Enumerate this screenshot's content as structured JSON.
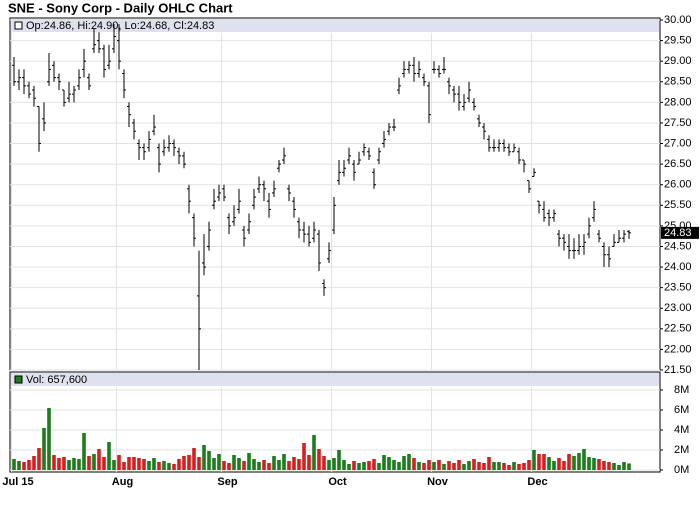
{
  "chart_data": {
    "type": "ohlc",
    "title": "SNE - Sony Corp - Daily OHLC Chart",
    "legend_text": "Op:24.86, Hi:24.90, Lo:24.68, Cl:24.83",
    "color": "#000000",
    "grid": true,
    "categories": [
      "Jul 15",
      null,
      null,
      null,
      null,
      null,
      null,
      null,
      null,
      null,
      null,
      null,
      null,
      null,
      null,
      null,
      null,
      null,
      null,
      null,
      null,
      "Aug",
      null,
      null,
      null,
      null,
      null,
      null,
      null,
      null,
      null,
      null,
      null,
      null,
      null,
      null,
      null,
      null,
      null,
      null,
      null,
      null,
      "Sep",
      null,
      null,
      null,
      null,
      null,
      null,
      null,
      null,
      null,
      null,
      null,
      null,
      null,
      null,
      null,
      null,
      null,
      null,
      null,
      null,
      null,
      "Oct",
      null,
      null,
      null,
      null,
      null,
      null,
      null,
      null,
      null,
      null,
      null,
      null,
      null,
      null,
      null,
      null,
      null,
      null,
      null,
      "Nov",
      null,
      null,
      null,
      null,
      null,
      null,
      null,
      null,
      null,
      null,
      null,
      null,
      null,
      null,
      null,
      null,
      null,
      null,
      null,
      "Dec",
      null,
      null,
      null,
      null,
      null,
      null,
      null,
      null,
      null,
      null,
      null,
      null,
      null,
      null,
      null,
      null,
      null,
      null,
      null
    ],
    "ohlc": [
      [
        28.9,
        29.1,
        28.4,
        28.5
      ],
      [
        28.5,
        28.8,
        28.3,
        28.6
      ],
      [
        28.6,
        28.8,
        28.2,
        28.4
      ],
      [
        28.4,
        28.5,
        28.1,
        28.2
      ],
      [
        28.3,
        28.4,
        27.9,
        28.1
      ],
      [
        27.9,
        27.9,
        26.8,
        27.0
      ],
      [
        27.6,
        28.0,
        27.3,
        27.5
      ],
      [
        28.5,
        29.2,
        28.4,
        28.8
      ],
      [
        28.9,
        29.0,
        28.5,
        28.6
      ],
      [
        28.6,
        28.7,
        28.3,
        28.5
      ],
      [
        28.3,
        28.3,
        27.9,
        28.0
      ],
      [
        28.1,
        28.5,
        28.0,
        28.2
      ],
      [
        28.2,
        28.4,
        28.0,
        28.3
      ],
      [
        28.4,
        28.8,
        28.3,
        28.6
      ],
      [
        28.8,
        29.3,
        28.6,
        29.0
      ],
      [
        28.6,
        28.7,
        28.3,
        28.4
      ],
      [
        29.3,
        29.8,
        29.2,
        29.4
      ],
      [
        29.5,
        29.7,
        29.2,
        29.3
      ],
      [
        29.3,
        29.4,
        28.6,
        28.8
      ],
      [
        28.9,
        29.4,
        28.8,
        29.0
      ],
      [
        29.3,
        29.9,
        29.2,
        29.6
      ],
      [
        29.5,
        29.9,
        28.8,
        29.0
      ],
      [
        28.7,
        28.8,
        28.1,
        28.3
      ],
      [
        27.9,
        28.0,
        27.4,
        27.7
      ],
      [
        27.5,
        27.6,
        27.1,
        27.3
      ],
      [
        27.0,
        27.1,
        26.6,
        26.9
      ],
      [
        26.9,
        27.0,
        26.6,
        26.8
      ],
      [
        26.9,
        27.3,
        26.8,
        27.1
      ],
      [
        27.3,
        27.7,
        27.2,
        27.4
      ],
      [
        26.9,
        27.0,
        26.3,
        26.5
      ],
      [
        26.8,
        27.1,
        26.7,
        26.9
      ],
      [
        26.9,
        27.2,
        26.8,
        27.0
      ],
      [
        27.0,
        27.1,
        26.7,
        26.9
      ],
      [
        26.8,
        26.9,
        26.5,
        26.7
      ],
      [
        26.7,
        26.8,
        26.4,
        26.5
      ],
      [
        25.9,
        26.0,
        25.3,
        25.6
      ],
      [
        25.2,
        25.3,
        24.5,
        24.7
      ],
      [
        23.3,
        24.4,
        21.5,
        22.5
      ],
      [
        24.1,
        24.8,
        23.8,
        24.0
      ],
      [
        24.5,
        25.1,
        24.4,
        24.9
      ],
      [
        25.5,
        25.9,
        25.4,
        25.6
      ],
      [
        25.7,
        26.0,
        25.6,
        25.8
      ],
      [
        25.9,
        26.0,
        25.6,
        25.7
      ],
      [
        25.2,
        25.3,
        24.8,
        25.0
      ],
      [
        25.1,
        25.5,
        25.0,
        25.2
      ],
      [
        25.4,
        25.9,
        25.3,
        25.6
      ],
      [
        24.9,
        25.0,
        24.5,
        24.7
      ],
      [
        24.9,
        25.3,
        24.8,
        25.1
      ],
      [
        25.5,
        25.9,
        25.4,
        25.7
      ],
      [
        25.9,
        26.2,
        25.8,
        26.0
      ],
      [
        26.0,
        26.1,
        25.6,
        25.9
      ],
      [
        25.6,
        25.8,
        25.2,
        25.4
      ],
      [
        25.8,
        26.1,
        25.7,
        25.9
      ],
      [
        26.4,
        26.6,
        26.3,
        26.5
      ],
      [
        26.6,
        26.9,
        26.5,
        26.7
      ],
      [
        25.9,
        26.0,
        25.6,
        25.8
      ],
      [
        25.6,
        25.7,
        25.2,
        25.4
      ],
      [
        25.1,
        25.2,
        24.7,
        24.9
      ],
      [
        24.9,
        25.1,
        24.6,
        24.8
      ],
      [
        24.8,
        25.0,
        24.5,
        24.6
      ],
      [
        24.7,
        25.1,
        24.6,
        24.9
      ],
      [
        24.8,
        24.9,
        23.9,
        24.1
      ],
      [
        23.6,
        23.7,
        23.3,
        23.5
      ],
      [
        24.2,
        24.6,
        24.1,
        24.4
      ],
      [
        24.9,
        25.7,
        24.8,
        25.5
      ],
      [
        26.1,
        26.6,
        26.0,
        26.3
      ],
      [
        26.3,
        26.6,
        26.2,
        26.4
      ],
      [
        26.6,
        26.9,
        26.5,
        26.7
      ],
      [
        26.5,
        26.6,
        26.1,
        26.3
      ],
      [
        26.5,
        26.8,
        26.5,
        26.6
      ],
      [
        26.8,
        27.0,
        26.7,
        26.9
      ],
      [
        26.8,
        26.9,
        26.6,
        26.7
      ],
      [
        26.3,
        26.4,
        25.9,
        26.0
      ],
      [
        26.6,
        26.9,
        26.5,
        26.8
      ],
      [
        27.0,
        27.3,
        26.9,
        27.1
      ],
      [
        27.3,
        27.5,
        27.2,
        27.4
      ],
      [
        27.4,
        27.6,
        27.3,
        27.4
      ],
      [
        28.3,
        28.6,
        28.2,
        28.4
      ],
      [
        28.7,
        29.0,
        28.6,
        28.8
      ],
      [
        28.8,
        29.0,
        28.7,
        28.9
      ],
      [
        28.9,
        29.1,
        28.5,
        28.7
      ],
      [
        28.7,
        29.0,
        28.6,
        28.8
      ],
      [
        28.6,
        28.7,
        28.4,
        28.5
      ],
      [
        28.4,
        28.5,
        27.5,
        27.7
      ],
      [
        28.8,
        29.0,
        28.7,
        28.8
      ],
      [
        28.8,
        28.9,
        28.6,
        28.7
      ],
      [
        28.8,
        29.1,
        28.7,
        28.8
      ],
      [
        28.5,
        28.6,
        28.2,
        28.4
      ],
      [
        28.3,
        28.4,
        28.0,
        28.2
      ],
      [
        28.2,
        28.4,
        27.8,
        28.0
      ],
      [
        27.9,
        28.2,
        27.8,
        28.0
      ],
      [
        28.1,
        28.5,
        28.0,
        28.3
      ],
      [
        28.0,
        28.1,
        27.8,
        27.9
      ],
      [
        27.6,
        27.7,
        27.4,
        27.5
      ],
      [
        27.4,
        27.5,
        27.1,
        27.3
      ],
      [
        27.1,
        27.2,
        26.8,
        26.9
      ],
      [
        26.9,
        27.1,
        26.8,
        26.9
      ],
      [
        26.9,
        27.1,
        26.8,
        27.0
      ],
      [
        27.0,
        27.1,
        26.8,
        26.9
      ],
      [
        26.9,
        27.0,
        26.7,
        26.8
      ],
      [
        26.8,
        27.0,
        26.8,
        26.9
      ],
      [
        26.8,
        26.9,
        26.5,
        26.6
      ],
      [
        26.6,
        26.6,
        26.3,
        26.5
      ],
      [
        26.1,
        26.1,
        25.8,
        25.9
      ],
      [
        26.2,
        26.4,
        26.2,
        26.3
      ],
      [
        25.6,
        25.6,
        25.3,
        25.5
      ],
      [
        25.4,
        25.6,
        25.1,
        25.2
      ],
      [
        25.3,
        25.4,
        25.0,
        25.2
      ],
      [
        25.2,
        25.4,
        25.1,
        25.3
      ],
      [
        24.8,
        24.9,
        24.5,
        24.7
      ],
      [
        24.7,
        24.8,
        24.4,
        24.6
      ],
      [
        24.5,
        24.8,
        24.2,
        24.4
      ],
      [
        24.4,
        24.7,
        24.2,
        24.4
      ],
      [
        24.4,
        24.8,
        24.3,
        24.5
      ],
      [
        24.5,
        24.8,
        24.3,
        24.6
      ],
      [
        24.8,
        25.2,
        24.7,
        25.0
      ],
      [
        25.2,
        25.6,
        25.1,
        25.4
      ],
      [
        24.8,
        24.9,
        24.6,
        24.7
      ],
      [
        24.5,
        24.6,
        24.0,
        24.3
      ],
      [
        24.3,
        24.5,
        24.0,
        24.2
      ],
      [
        24.5,
        24.8,
        24.5,
        24.6
      ],
      [
        24.6,
        24.9,
        24.6,
        24.7
      ],
      [
        24.7,
        24.9,
        24.6,
        24.8
      ],
      [
        24.86,
        24.9,
        24.68,
        24.83
      ]
    ],
    "ylim": [
      21.5,
      30
    ],
    "yticks": [
      {
        "value": 21.5,
        "label": "21.50"
      },
      {
        "value": 22,
        "label": "22.00"
      },
      {
        "value": 22.5,
        "label": "22.50"
      },
      {
        "value": 23,
        "label": "23.00"
      },
      {
        "value": 23.5,
        "label": "23.50"
      },
      {
        "value": 24,
        "label": "24.00"
      },
      {
        "value": 24.5,
        "label": "24.50"
      },
      {
        "value": 25,
        "label": "25.00"
      },
      {
        "value": 25.5,
        "label": "25.50"
      },
      {
        "value": 26,
        "label": "26.00"
      },
      {
        "value": 26.5,
        "label": "26.50"
      },
      {
        "value": 27,
        "label": "27.00"
      },
      {
        "value": 27.5,
        "label": "27.50"
      },
      {
        "value": 28,
        "label": "28.00"
      },
      {
        "value": 28.5,
        "label": "28.50"
      },
      {
        "value": 29,
        "label": "29.00"
      },
      {
        "value": 29.5,
        "label": "29.50"
      },
      {
        "value": 30,
        "label": "30.00"
      }
    ],
    "volume": {
      "legend_text": "Vol: 657,600",
      "up_color": "#1e7b1e",
      "down_color": "#d42020",
      "ylim": [
        0,
        10000000
      ],
      "yticks": [
        {
          "value": 0,
          "label": "0M"
        },
        {
          "value": 2000000,
          "label": "2M"
        },
        {
          "value": 4000000,
          "label": "4M"
        },
        {
          "value": 6000000,
          "label": "6M"
        },
        {
          "value": 8000000,
          "label": "8M"
        }
      ],
      "values": [
        1100000,
        900000,
        800000,
        1000000,
        1400000,
        2200000,
        4200000,
        6200000,
        1500000,
        1200000,
        1300000,
        1000000,
        1200000,
        1100000,
        3700000,
        1400000,
        1600000,
        2100000,
        1300000,
        2800000,
        1000000,
        1500000,
        800000,
        1300000,
        1300000,
        1200000,
        1100000,
        900000,
        1200000,
        800000,
        900000,
        700000,
        600000,
        1100000,
        1400000,
        1500000,
        2200000,
        1300000,
        2500000,
        1900000,
        1200000,
        1600000,
        900000,
        700000,
        1500000,
        1200000,
        900000,
        1700000,
        1100000,
        800000,
        1000000,
        700000,
        1400000,
        1000000,
        1600000,
        900000,
        1300000,
        1100000,
        2700000,
        1500000,
        3500000,
        2100000,
        1400000,
        1000000,
        1200000,
        2000000,
        1000000,
        600000,
        900000,
        700000,
        800000,
        900000,
        1100000,
        700000,
        1500000,
        1300000,
        1000000,
        800000,
        1400000,
        1600000,
        1200000,
        800000,
        700000,
        1000000,
        800000,
        1000000,
        600000,
        900000,
        700000,
        1000000,
        600000,
        900000,
        1100000,
        800000,
        700000,
        1300000,
        800000,
        800000,
        700000,
        500000,
        800000,
        600000,
        700000,
        1000000,
        2000000,
        1600000,
        1600000,
        1300000,
        900000,
        1200000,
        900000,
        1600000,
        1400000,
        1700000,
        2100000,
        1300000,
        1200000,
        1100000,
        900000,
        800000,
        700000,
        500000,
        800000,
        657600
      ]
    }
  }
}
